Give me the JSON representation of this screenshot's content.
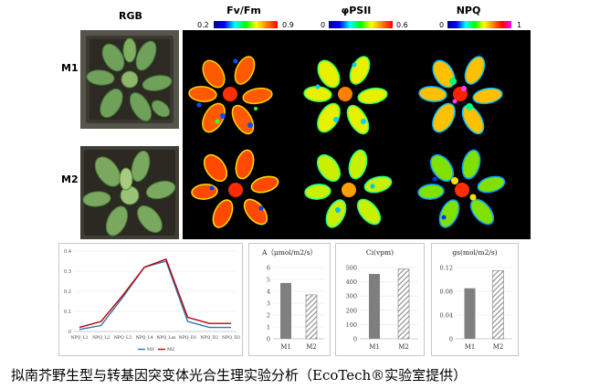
{
  "headers": {
    "rgb": "RGB",
    "fvfm": "Fv/Fm",
    "phipsii": "φPSII",
    "npq": "NPQ"
  },
  "rows": [
    "M1",
    "M2"
  ],
  "scales": {
    "fvfm": {
      "min": "0.2",
      "max": "0.9"
    },
    "phipsii": {
      "min": "0",
      "max": "0.6"
    },
    "npq": {
      "min": "0",
      "max": "1"
    }
  },
  "chart_data": [
    {
      "type": "line",
      "x": [
        "NPQ_L1",
        "NPQ_L2",
        "NPQ_L3",
        "NPQ_L4",
        "NPQ_Lss",
        "NPQ_D1",
        "NPQ_D2",
        "NPQ_D3"
      ],
      "yticks": [
        "0",
        "0.1",
        "0.2",
        "0.3",
        "0.4"
      ],
      "ylim": [
        0,
        0.4
      ],
      "series": [
        {
          "name": "M1",
          "color": "#2e75b6",
          "values": [
            0.01,
            0.03,
            0.17,
            0.32,
            0.35,
            0.05,
            0.02,
            0.02
          ]
        },
        {
          "name": "M2",
          "color": "#c00000",
          "values": [
            0.02,
            0.05,
            0.18,
            0.32,
            0.36,
            0.07,
            0.04,
            0.04
          ]
        }
      ]
    },
    {
      "type": "bar",
      "title": "A（μmol/m2/s）",
      "categories": [
        "M1",
        "M2"
      ],
      "values": [
        4.7,
        3.7
      ],
      "yticks": [
        "0",
        "1",
        "2",
        "3",
        "4",
        "5",
        "6"
      ],
      "ylim": [
        0,
        6
      ]
    },
    {
      "type": "bar",
      "title": "Ci(vpm)",
      "categories": [
        "M1",
        "M2"
      ],
      "values": [
        455,
        490
      ],
      "yticks": [
        "0",
        "100",
        "200",
        "300",
        "400",
        "500"
      ],
      "ylim": [
        0,
        500
      ]
    },
    {
      "type": "bar",
      "title": "gs(mol/m2/s)",
      "categories": [
        "M1",
        "M2"
      ],
      "values": [
        0.085,
        0.115
      ],
      "yticks": [
        "0",
        "0.04",
        "0.08",
        "0.12"
      ],
      "ylim": [
        0,
        0.12
      ]
    }
  ],
  "caption": "拟南芥野生型与转基因突变体光合生理实验分析（EcoTech®实验室提供）"
}
